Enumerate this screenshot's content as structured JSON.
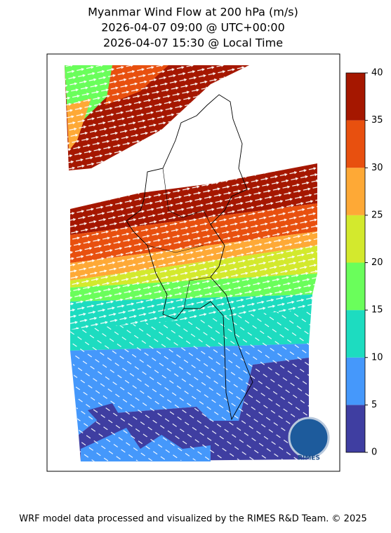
{
  "title": [
    "Myanmar Wind Flow at 200 hPa (m/s)",
    "2026-04-07 09:00 @ UTC+00:00",
    "2026-04-07 15:30 @ Local Time"
  ],
  "colorbar": {
    "lim": [
      0,
      40
    ],
    "ticks": [
      0,
      5,
      10,
      15,
      20,
      25,
      30,
      35,
      40
    ],
    "colors": [
      "#3f3ea1",
      "#4598fb",
      "#1ddcc0",
      "#6afe5b",
      "#d3e92d",
      "#fea936",
      "#e8500f",
      "#a51700"
    ]
  },
  "logo_text": "RIMES",
  "footer": "WRF model data processed and visualized by the RIMES R&D Team. © 2025"
}
